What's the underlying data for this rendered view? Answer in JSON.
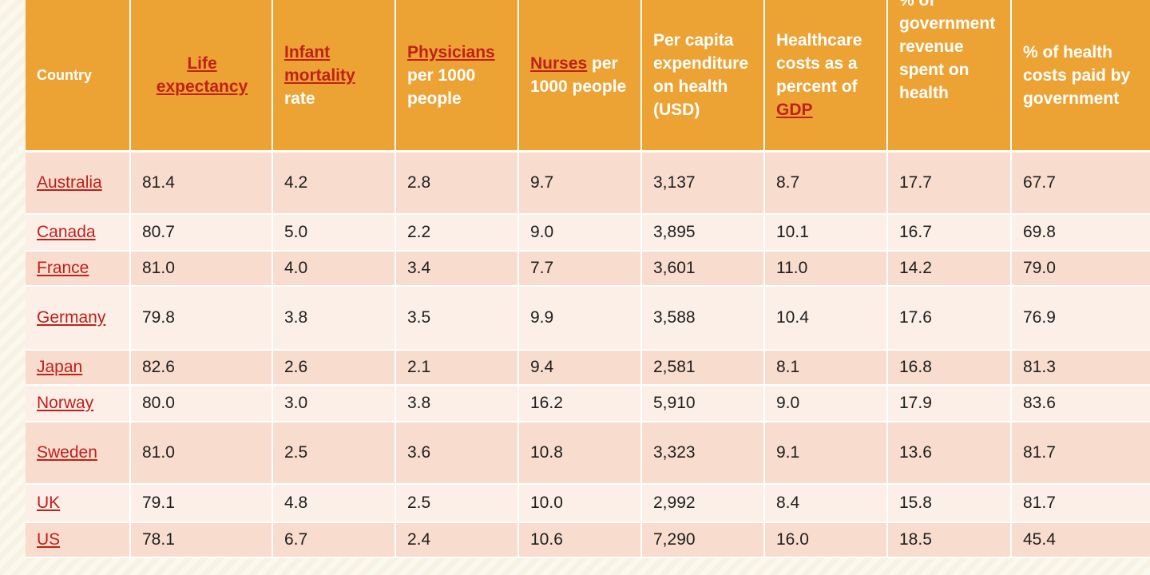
{
  "headers": {
    "country": "Country",
    "life_expectancy": "Life expectancy",
    "infant_mortality_link": "Infant mortality",
    "infant_mortality_rest": " rate",
    "physicians_link": "Physicians",
    "physicians_rest": " per 1000 people",
    "nurses_link": "Nurses",
    "nurses_rest": " per 1000 people",
    "per_capita": "Per capita expenditure on health (USD)",
    "healthcare_costs_text": "Healthcare costs as a percent of ",
    "healthcare_costs_link": "GDP",
    "gov_revenue": "% of government revenue spent on health",
    "gov_paid": "% of health costs paid by government"
  },
  "rows": [
    {
      "country": "Australia",
      "values": [
        "81.4",
        "4.2",
        "2.8",
        "9.7",
        "3,137",
        "8.7",
        "17.7",
        "67.7"
      ]
    },
    {
      "country": "Canada",
      "values": [
        "80.7",
        "5.0",
        "2.2",
        "9.0",
        "3,895",
        "10.1",
        "16.7",
        "69.8"
      ]
    },
    {
      "country": "France",
      "values": [
        "81.0",
        "4.0",
        "3.4",
        "7.7",
        "3,601",
        "11.0",
        "14.2",
        "79.0"
      ]
    },
    {
      "country": "Germany",
      "values": [
        "79.8",
        "3.8",
        "3.5",
        "9.9",
        "3,588",
        "10.4",
        "17.6",
        "76.9"
      ]
    },
    {
      "country": "Japan",
      "values": [
        "82.6",
        "2.6",
        "2.1",
        "9.4",
        "2,581",
        "8.1",
        "16.8",
        "81.3"
      ]
    },
    {
      "country": "Norway",
      "values": [
        "80.0",
        "3.0",
        "3.8",
        "16.2",
        "5,910",
        "9.0",
        "17.9",
        "83.6"
      ]
    },
    {
      "country": "Sweden",
      "values": [
        "81.0",
        "2.5",
        "3.6",
        "10.8",
        "3,323",
        "9.1",
        "13.6",
        "81.7"
      ]
    },
    {
      "country": "UK",
      "values": [
        "79.1",
        "4.8",
        "2.5",
        "10.0",
        "2,992",
        "8.4",
        "15.8",
        "81.7"
      ]
    },
    {
      "country": "US",
      "values": [
        "78.1",
        "6.7",
        "2.4",
        "10.6",
        "7,290",
        "16.0",
        "18.5",
        "45.4"
      ]
    }
  ]
}
